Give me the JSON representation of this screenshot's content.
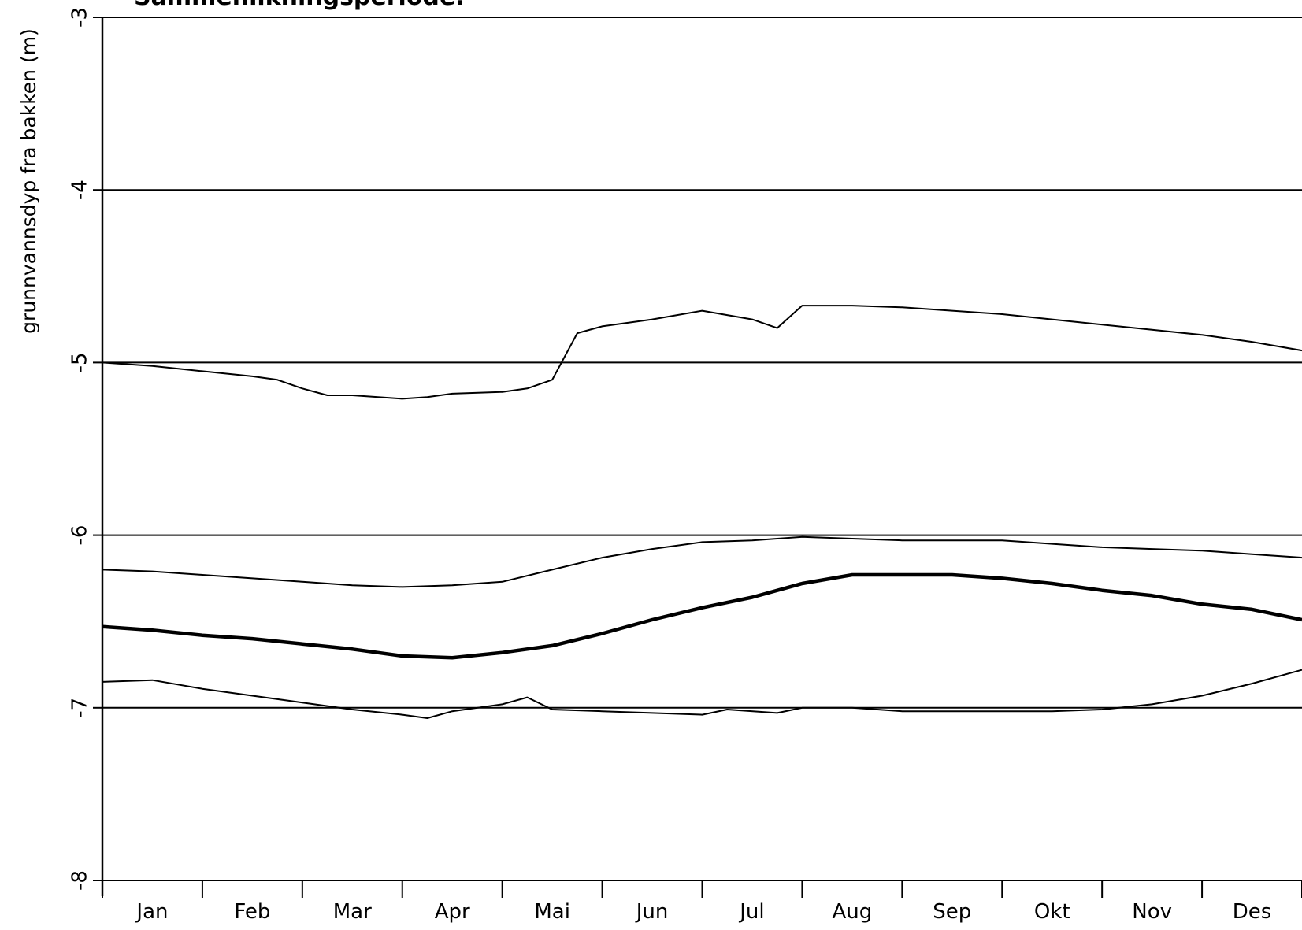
{
  "chart_data": {
    "type": "line",
    "title": "Sammenlikningsperiode:",
    "ylabel": "grunnvannsdyp fra bakken (m)",
    "xlabel": "",
    "ylim": [
      -8,
      -3
    ],
    "yticks": [
      -8,
      -7,
      -6,
      -5,
      -4,
      -3
    ],
    "ytick_labels": [
      "-8",
      "-7",
      "-6",
      "-5",
      "-4",
      "-3"
    ],
    "grid": true,
    "legend": "none",
    "x_months": [
      "Jan",
      "Feb",
      "Mar",
      "Apr",
      "Mai",
      "Jun",
      "Jul",
      "Aug",
      "Sep",
      "Okt",
      "Nov",
      "Des"
    ],
    "x_range": [
      0,
      12
    ],
    "series": [
      {
        "role": "max",
        "stroke": "thin",
        "points": [
          [
            0.0,
            -5.0
          ],
          [
            0.5,
            -5.02
          ],
          [
            1.0,
            -5.05
          ],
          [
            1.5,
            -5.08
          ],
          [
            1.75,
            -5.1
          ],
          [
            2.0,
            -5.15
          ],
          [
            2.25,
            -5.19
          ],
          [
            2.5,
            -5.19
          ],
          [
            3.0,
            -5.21
          ],
          [
            3.25,
            -5.2
          ],
          [
            3.5,
            -5.18
          ],
          [
            4.0,
            -5.17
          ],
          [
            4.25,
            -5.15
          ],
          [
            4.5,
            -5.1
          ],
          [
            4.75,
            -4.83
          ],
          [
            5.0,
            -4.79
          ],
          [
            5.5,
            -4.75
          ],
          [
            6.0,
            -4.7
          ],
          [
            6.5,
            -4.75
          ],
          [
            6.75,
            -4.8
          ],
          [
            7.0,
            -4.67
          ],
          [
            7.5,
            -4.67
          ],
          [
            8.0,
            -4.68
          ],
          [
            8.5,
            -4.7
          ],
          [
            9.0,
            -4.72
          ],
          [
            9.5,
            -4.75
          ],
          [
            10.0,
            -4.78
          ],
          [
            10.5,
            -4.81
          ],
          [
            11.0,
            -4.84
          ],
          [
            11.5,
            -4.88
          ],
          [
            12.0,
            -4.93
          ]
        ]
      },
      {
        "role": "upper-quartile",
        "stroke": "thin",
        "points": [
          [
            0.0,
            -6.2
          ],
          [
            0.5,
            -6.21
          ],
          [
            1.0,
            -6.23
          ],
          [
            1.5,
            -6.25
          ],
          [
            2.0,
            -6.27
          ],
          [
            2.5,
            -6.29
          ],
          [
            3.0,
            -6.3
          ],
          [
            3.5,
            -6.29
          ],
          [
            4.0,
            -6.27
          ],
          [
            4.5,
            -6.2
          ],
          [
            5.0,
            -6.13
          ],
          [
            5.5,
            -6.08
          ],
          [
            6.0,
            -6.04
          ],
          [
            6.5,
            -6.03
          ],
          [
            7.0,
            -6.01
          ],
          [
            7.5,
            -6.02
          ],
          [
            8.0,
            -6.03
          ],
          [
            8.5,
            -6.03
          ],
          [
            9.0,
            -6.03
          ],
          [
            9.5,
            -6.05
          ],
          [
            10.0,
            -6.07
          ],
          [
            10.5,
            -6.08
          ],
          [
            11.0,
            -6.09
          ],
          [
            11.5,
            -6.11
          ],
          [
            12.0,
            -6.13
          ]
        ]
      },
      {
        "role": "median",
        "stroke": "thick",
        "points": [
          [
            0.0,
            -6.53
          ],
          [
            0.5,
            -6.55
          ],
          [
            1.0,
            -6.58
          ],
          [
            1.5,
            -6.6
          ],
          [
            2.0,
            -6.63
          ],
          [
            2.5,
            -6.66
          ],
          [
            3.0,
            -6.7
          ],
          [
            3.5,
            -6.71
          ],
          [
            4.0,
            -6.68
          ],
          [
            4.5,
            -6.64
          ],
          [
            5.0,
            -6.57
          ],
          [
            5.5,
            -6.49
          ],
          [
            6.0,
            -6.42
          ],
          [
            6.5,
            -6.36
          ],
          [
            7.0,
            -6.28
          ],
          [
            7.5,
            -6.23
          ],
          [
            8.0,
            -6.23
          ],
          [
            8.5,
            -6.23
          ],
          [
            9.0,
            -6.25
          ],
          [
            9.5,
            -6.28
          ],
          [
            10.0,
            -6.32
          ],
          [
            10.5,
            -6.35
          ],
          [
            11.0,
            -6.4
          ],
          [
            11.5,
            -6.43
          ],
          [
            12.0,
            -6.49
          ]
        ]
      },
      {
        "role": "min",
        "stroke": "thin",
        "points": [
          [
            0.0,
            -6.85
          ],
          [
            0.5,
            -6.84
          ],
          [
            1.0,
            -6.89
          ],
          [
            1.5,
            -6.93
          ],
          [
            2.0,
            -6.97
          ],
          [
            2.5,
            -7.01
          ],
          [
            3.0,
            -7.04
          ],
          [
            3.25,
            -7.06
          ],
          [
            3.5,
            -7.02
          ],
          [
            4.0,
            -6.98
          ],
          [
            4.25,
            -6.94
          ],
          [
            4.5,
            -7.01
          ],
          [
            5.0,
            -7.02
          ],
          [
            5.5,
            -7.03
          ],
          [
            6.0,
            -7.04
          ],
          [
            6.25,
            -7.01
          ],
          [
            6.75,
            -7.03
          ],
          [
            7.0,
            -7.0
          ],
          [
            7.5,
            -7.0
          ],
          [
            8.0,
            -7.02
          ],
          [
            8.5,
            -7.02
          ],
          [
            9.0,
            -7.02
          ],
          [
            9.5,
            -7.02
          ],
          [
            10.0,
            -7.01
          ],
          [
            10.5,
            -6.98
          ],
          [
            11.0,
            -6.93
          ],
          [
            11.5,
            -6.86
          ],
          [
            12.0,
            -6.78
          ]
        ]
      }
    ]
  }
}
